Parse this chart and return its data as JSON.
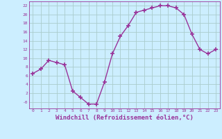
{
  "x": [
    0,
    1,
    2,
    3,
    4,
    5,
    6,
    7,
    8,
    9,
    10,
    11,
    12,
    13,
    14,
    15,
    16,
    17,
    18,
    19,
    20,
    21,
    22,
    23
  ],
  "y": [
    6.5,
    7.5,
    9.5,
    9.0,
    8.5,
    2.5,
    1.0,
    -0.5,
    -0.5,
    4.5,
    11.0,
    15.0,
    17.5,
    20.5,
    21.0,
    21.5,
    22.0,
    22.0,
    21.5,
    20.0,
    15.5,
    12.0,
    11.0,
    12.0
  ],
  "line_color": "#993399",
  "marker": "+",
  "markersize": 4,
  "markeredgewidth": 1.2,
  "linewidth": 1.0,
  "xlabel": "Windchill (Refroidissement éolien,°C)",
  "xlabel_fontsize": 6.5,
  "bg_color": "#cceeff",
  "grid_color": "#aacccc",
  "tick_color": "#993399",
  "label_color": "#993399",
  "ylim": [
    -1.5,
    23
  ],
  "xlim": [
    -0.5,
    23.5
  ],
  "yticks": [
    0,
    2,
    4,
    6,
    8,
    10,
    12,
    14,
    16,
    18,
    20,
    22
  ],
  "ytick_labels": [
    "-0",
    "2",
    "4",
    "6",
    "8",
    "10",
    "12",
    "14",
    "16",
    "18",
    "20",
    "22"
  ],
  "xticks": [
    0,
    1,
    2,
    3,
    4,
    5,
    6,
    7,
    8,
    9,
    10,
    11,
    12,
    13,
    14,
    15,
    16,
    17,
    18,
    19,
    20,
    21,
    22,
    23
  ]
}
